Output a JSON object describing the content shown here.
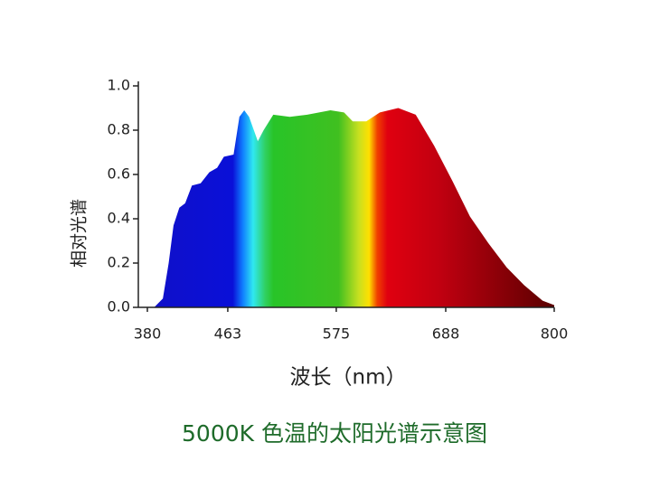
{
  "chart_data": {
    "type": "area",
    "title": "5000K 色温的太阳光谱示意图",
    "x_label": "波长（nm）",
    "y_label": "相对光谱",
    "x": [
      387,
      396,
      402,
      407,
      413,
      419,
      426,
      435,
      444,
      452,
      459,
      469,
      475,
      480,
      485,
      494,
      500,
      510,
      527,
      545,
      569,
      583,
      592,
      606,
      620,
      639,
      657,
      676,
      695,
      713,
      732,
      751,
      769,
      788,
      800
    ],
    "values": [
      0,
      0.04,
      0.2,
      0.37,
      0.45,
      0.47,
      0.55,
      0.56,
      0.61,
      0.63,
      0.68,
      0.69,
      0.86,
      0.89,
      0.86,
      0.75,
      0.8,
      0.87,
      0.86,
      0.87,
      0.89,
      0.88,
      0.84,
      0.84,
      0.88,
      0.9,
      0.87,
      0.73,
      0.57,
      0.41,
      0.29,
      0.18,
      0.1,
      0.03,
      0.01
    ],
    "xlim": [
      380,
      800
    ],
    "xticks": [
      380,
      463,
      575,
      688,
      800
    ],
    "ylim": [
      0,
      1
    ],
    "yticks": [
      {
        "value": 0,
        "label": "0.0"
      },
      {
        "value": 0.2,
        "label": "0.2"
      },
      {
        "value": 0.4,
        "label": "0.4"
      },
      {
        "value": 0.6,
        "label": "0.6"
      },
      {
        "value": 0.8,
        "label": "0.8"
      },
      {
        "value": 1,
        "label": "1.0"
      }
    ],
    "grid": false
  }
}
